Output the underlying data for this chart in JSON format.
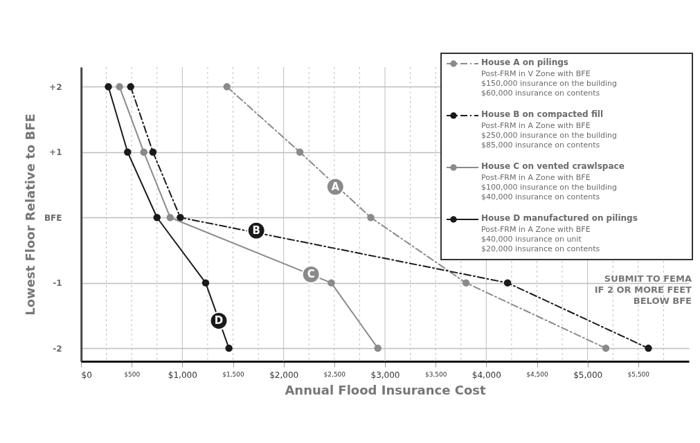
{
  "chart_data": {
    "type": "line",
    "xlabel": "Annual Flood Insurance Cost",
    "ylabel": "Lowest Floor Relative to BFE",
    "series": [
      {
        "name": "House A on pilings",
        "color": "#8a8a8a",
        "line_style": "dashed",
        "x": [
          1440,
          2160,
          2860,
          3800,
          5180
        ],
        "values": [
          2,
          1,
          0,
          -1,
          -2
        ]
      },
      {
        "name": "House B on compacted fill",
        "color": "#1a1a1a",
        "line_style": "dashed",
        "x": [
          490,
          710,
          980,
          4210,
          5600
        ],
        "values": [
          2,
          1,
          0,
          -1,
          -2
        ]
      },
      {
        "name": "House C on vented crawlspace",
        "color": "#8a8a8a",
        "line_style": "solid",
        "x": [
          380,
          620,
          880,
          2470,
          2930
        ],
        "values": [
          2,
          1,
          0,
          -1,
          -2
        ]
      },
      {
        "name": "House D manufactured on pilings",
        "color": "#1a1a1a",
        "line_style": "solid",
        "x": [
          270,
          460,
          750,
          1230,
          1460
        ],
        "values": [
          2,
          1,
          0,
          -1,
          -2
        ]
      }
    ],
    "marker": "circle",
    "xlim": [
      0,
      6000
    ],
    "xticks": [
      {
        "value": 0,
        "label": "$0"
      },
      {
        "value": 250,
        "label": null
      },
      {
        "value": 500,
        "label": "$500"
      },
      {
        "value": 750,
        "label": null
      },
      {
        "value": 1000,
        "label": "$1,000"
      },
      {
        "value": 1250,
        "label": null
      },
      {
        "value": 1500,
        "label": "$1,500"
      },
      {
        "value": 1750,
        "label": null
      },
      {
        "value": 2000,
        "label": "$2,000"
      },
      {
        "value": 2250,
        "label": null
      },
      {
        "value": 2500,
        "label": "$2,500"
      },
      {
        "value": 2750,
        "label": null
      },
      {
        "value": 3000,
        "label": "$3,000"
      },
      {
        "value": 3250,
        "label": null
      },
      {
        "value": 3500,
        "label": "$3,500"
      },
      {
        "value": 3750,
        "label": null
      },
      {
        "value": 4000,
        "label": "$4,000"
      },
      {
        "value": 4250,
        "label": null
      },
      {
        "value": 4500,
        "label": "$4,500"
      },
      {
        "value": 4750,
        "label": null
      },
      {
        "value": 5000,
        "label": "$5,000"
      },
      {
        "value": 5250,
        "label": null
      },
      {
        "value": 5500,
        "label": "$5,500"
      },
      {
        "value": 5750,
        "label": null
      }
    ],
    "ylim": [
      -2.2,
      2.3
    ],
    "yticks": [
      {
        "value": 2,
        "label": "+2"
      },
      {
        "value": 1,
        "label": "+1"
      },
      {
        "value": 0,
        "label": "BFE"
      },
      -1,
      -2
    ],
    "grid": true,
    "legend": "top right",
    "annotations": [
      {
        "text": "A",
        "x": 2510,
        "y": 0.47
      },
      {
        "text": "B",
        "x": 1730,
        "y": -0.2
      },
      {
        "text": "C",
        "x": 2270,
        "y": -0.87
      },
      {
        "text": "D",
        "x": 1360,
        "y": -1.58
      },
      "Post-FRM in V Zone with BFE\n$150,000 insurance on the building\n$60,000 insurance on contents",
      "Post-FRM in A Zone with BFE\n$250,000 insurance on the building\n$85,000 insurance on contents",
      "Post-FRM in A Zone with BFE\n$100,000 insurance on the building\n$40,000 insurance on contents",
      "Post-FRM in A Zone with BFE\n$40,000 insurance on unit\n$20,000 insurance on contents",
      "SUBMIT TO FEMA\nIF 2 OR MORE FEET\nBELOW BFE"
    ]
  }
}
